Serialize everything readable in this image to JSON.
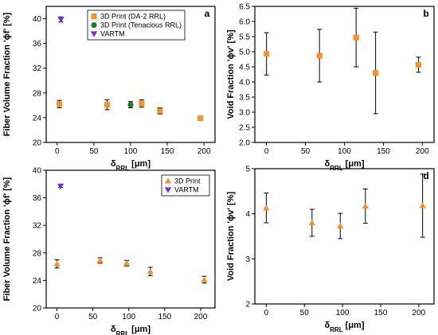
{
  "colors": {
    "orange": "#f5922f",
    "green": "#1e7a1e",
    "purple": "#7a2fd6"
  },
  "chart_data": [
    {
      "panel": "a",
      "type": "scatter",
      "xlabel_main": "δ",
      "xlabel_sub": "RRL",
      "xlabel_unit": " [μm]",
      "ylabel": "Fiber Volume Fraction 'ϕf' [%]",
      "xlim": [
        -15,
        215
      ],
      "ylim": [
        20,
        42
      ],
      "xticks": [
        0,
        50,
        100,
        150,
        200
      ],
      "yticks": [
        20,
        24,
        28,
        32,
        36,
        40
      ],
      "legend": "top-center",
      "series": [
        {
          "name": "3D Print (DA-2 RRL)",
          "marker": "square",
          "color": "#f5922f",
          "x": [
            3,
            68,
            115,
            140,
            195
          ],
          "y": [
            26.2,
            26.1,
            26.3,
            25.1,
            23.9
          ],
          "err": [
            0.6,
            0.8,
            0.6,
            0.5,
            0.3
          ]
        },
        {
          "name": "3D Print (Tenacious RRL)",
          "marker": "circle",
          "color": "#1e7a1e",
          "x": [
            100
          ],
          "y": [
            26.1
          ],
          "err": [
            0.5
          ]
        },
        {
          "name": "VARTM",
          "marker": "triangle-down",
          "color": "#7a2fd6",
          "x": [
            5
          ],
          "y": [
            39.9
          ],
          "err": [
            0.4
          ]
        }
      ]
    },
    {
      "panel": "b",
      "type": "scatter",
      "xlabel_main": "δ",
      "xlabel_sub": "RRL",
      "xlabel_unit": " [μm]",
      "ylabel": "Void Fraction 'ϕv' [%]",
      "xlim": [
        -15,
        215
      ],
      "ylim": [
        2.0,
        6.5
      ],
      "xticks": [
        0,
        50,
        100,
        150,
        200
      ],
      "yticks": [
        2.0,
        2.5,
        3.0,
        3.5,
        4.0,
        4.5,
        5.0,
        5.5,
        6.0,
        6.5
      ],
      "ytick_decimals": 1,
      "series": [
        {
          "marker": "square",
          "color": "#f5922f",
          "x": [
            0,
            68,
            115,
            140,
            195
          ],
          "y": [
            4.93,
            4.87,
            5.47,
            4.3,
            4.57
          ],
          "err": [
            0.7,
            0.87,
            0.97,
            1.35,
            0.25
          ]
        }
      ]
    },
    {
      "panel": "c",
      "type": "scatter",
      "xlabel_main": "δ",
      "xlabel_sub": "RRL",
      "xlabel_unit": " [μm]",
      "ylabel": "Fiber Volume Fraction 'ϕf' [%]",
      "xlim": [
        -15,
        220
      ],
      "ylim": [
        20,
        40
      ],
      "xticks": [
        0,
        50,
        100,
        150,
        200
      ],
      "yticks": [
        20,
        24,
        28,
        32,
        36,
        40
      ],
      "legend": "top-right",
      "series": [
        {
          "name": "3D Print",
          "marker": "triangle-up",
          "color": "#f5922f",
          "x": [
            0,
            60,
            97,
            130,
            205
          ],
          "y": [
            26.4,
            26.9,
            26.5,
            25.3,
            24.1
          ],
          "err": [
            0.6,
            0.4,
            0.4,
            0.6,
            0.5
          ]
        },
        {
          "name": "VARTM",
          "marker": "triangle-down",
          "color": "#7a2fd6",
          "x": [
            5
          ],
          "y": [
            37.7
          ],
          "err": [
            0.2
          ]
        }
      ]
    },
    {
      "panel": "d",
      "type": "scatter",
      "xlabel_main": "δ",
      "xlabel_sub": "RRL",
      "xlabel_unit": " [μm]",
      "ylabel": "Void Fraction 'ϕv' [%]",
      "xlim": [
        -15,
        220
      ],
      "ylim": [
        2,
        5
      ],
      "xticks": [
        0,
        50,
        100,
        150,
        200
      ],
      "yticks": [
        2,
        3,
        4,
        5
      ],
      "series": [
        {
          "marker": "triangle-up",
          "color": "#f5922f",
          "x": [
            0,
            60,
            97,
            130,
            205
          ],
          "y": [
            4.13,
            3.8,
            3.73,
            4.17,
            4.18
          ],
          "err": [
            0.33,
            0.3,
            0.28,
            0.38,
            0.7
          ]
        }
      ]
    }
  ]
}
